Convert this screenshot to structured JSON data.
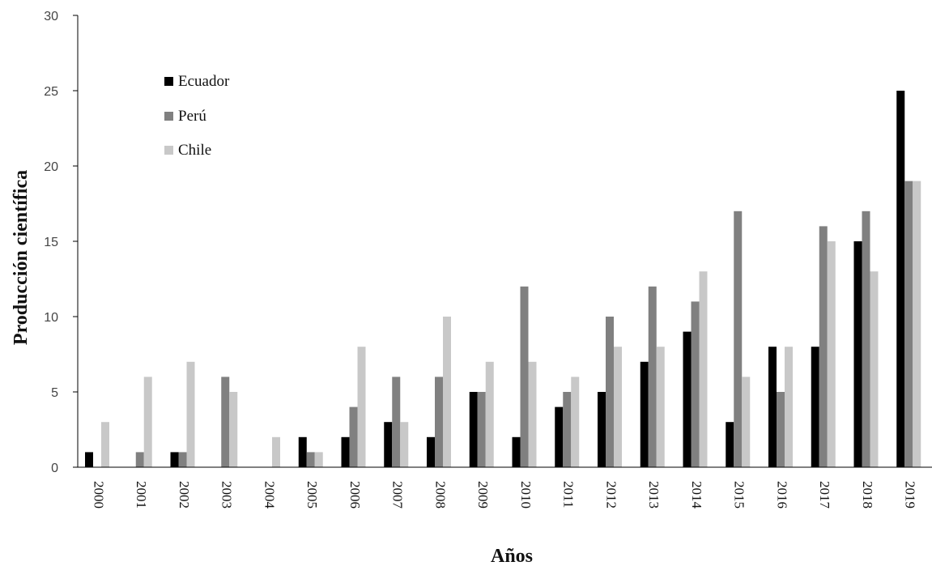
{
  "chart_data": {
    "type": "bar",
    "title": "",
    "xlabel": "Años",
    "ylabel": "Producción científica",
    "ylim": [
      0,
      30
    ],
    "yticks": [
      0,
      5,
      10,
      15,
      20,
      25,
      30
    ],
    "grid": false,
    "legend_position": "top-left",
    "categories": [
      "2000",
      "2001",
      "2002",
      "2003",
      "2004",
      "2005",
      "2006",
      "2007",
      "2008",
      "2009",
      "2010",
      "2011",
      "2012",
      "2013",
      "2014",
      "2015",
      "2016",
      "2017",
      "2018",
      "2019"
    ],
    "series": [
      {
        "name": "Ecuador",
        "color": "#000000",
        "values": [
          1,
          0,
          1,
          0,
          0,
          2,
          2,
          3,
          2,
          5,
          2,
          4,
          5,
          7,
          9,
          3,
          8,
          8,
          15,
          25
        ]
      },
      {
        "name": "Perú",
        "color": "#808080",
        "values": [
          0,
          1,
          1,
          6,
          0,
          1,
          4,
          6,
          6,
          5,
          12,
          5,
          10,
          12,
          11,
          17,
          5,
          16,
          17,
          19
        ]
      },
      {
        "name": "Chile",
        "color": "#c8c8c8",
        "values": [
          3,
          6,
          7,
          5,
          2,
          1,
          8,
          3,
          10,
          7,
          7,
          6,
          8,
          8,
          13,
          6,
          8,
          15,
          13,
          19
        ]
      }
    ]
  }
}
